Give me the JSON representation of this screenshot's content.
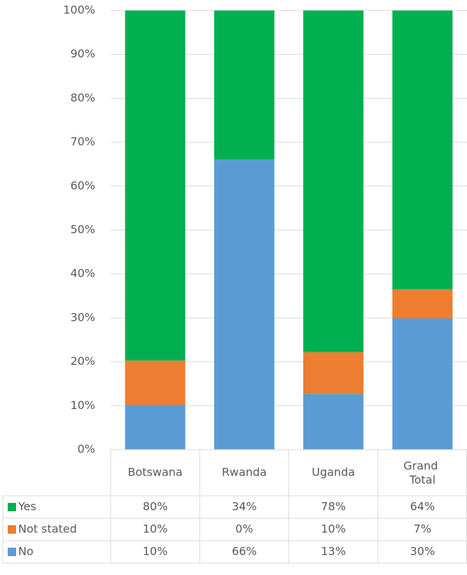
{
  "chart_data": {
    "type": "stacked_bar",
    "categories": [
      "Botswana",
      "Rwanda",
      "Uganda",
      "Grand Total"
    ],
    "series": [
      {
        "name": "No",
        "color": "#5b9bd5",
        "values": [
          10.2,
          66.1,
          12.7,
          29.9
        ],
        "value_labels": [
          "10%",
          "66%",
          "13%",
          "30%"
        ]
      },
      {
        "name": "Not stated",
        "color": "#ed7d31",
        "values": [
          10.1,
          0,
          9.5,
          6.6
        ],
        "value_labels": [
          "10%",
          "0%",
          "10%",
          "7%"
        ]
      },
      {
        "name": "Yes",
        "color": "#00b050",
        "values": [
          79.7,
          33.9,
          77.8,
          63.5
        ],
        "value_labels": [
          "80%",
          "34%",
          "78%",
          "64%"
        ]
      }
    ],
    "ylim": [
      0,
      100
    ],
    "yticks": [
      {
        "value": 0,
        "label": "0%"
      },
      {
        "value": 10,
        "label": "10%"
      },
      {
        "value": 20,
        "label": "20%"
      },
      {
        "value": 30,
        "label": "30%"
      },
      {
        "value": 40,
        "label": "40%"
      },
      {
        "value": 50,
        "label": "50%"
      },
      {
        "value": 60,
        "label": "60%"
      },
      {
        "value": 70,
        "label": "70%"
      },
      {
        "value": 80,
        "label": "80%"
      },
      {
        "value": 90,
        "label": "90%"
      },
      {
        "value": 100,
        "label": "100%"
      }
    ],
    "grid": true
  }
}
